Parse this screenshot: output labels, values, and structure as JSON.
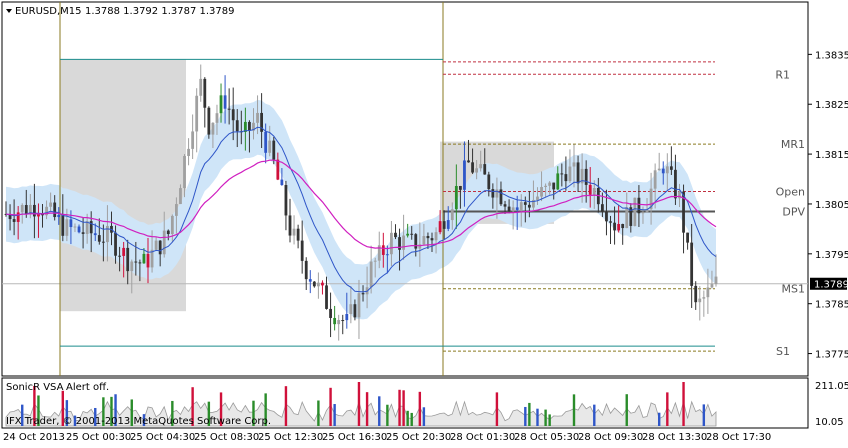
{
  "header": {
    "symbol_label": "EURUSD,M15",
    "ohlc_label": "1.3788 1.3792 1.3787 1.3789"
  },
  "price_axis": {
    "ticks": [
      "1.3835",
      "1.3825",
      "1.3815",
      "1.3805",
      "1.3795",
      "1.3785",
      "1.3775"
    ],
    "tick_values": [
      1.3835,
      1.3825,
      1.3815,
      1.3805,
      1.3795,
      1.3785,
      1.3775
    ],
    "current_price": "1.3789",
    "current_value": 1.3789
  },
  "level_labels": [
    {
      "label": "R1",
      "value": 1.3831
    },
    {
      "label": "MR1",
      "value": 1.3817
    },
    {
      "label": "Open",
      "value": 1.38075
    },
    {
      "label": "DPV",
      "value": 1.38035
    },
    {
      "label": "MS1",
      "value": 1.3788
    },
    {
      "label": "S1",
      "value": 1.37755
    }
  ],
  "indicator": {
    "title": "SonicR VSA",
    "alert": "Alert off.",
    "scale_top": "211.05",
    "scale_bottom": "10.05",
    "watermark": "IFX Trader, © 2001-2013 MetaQuotes Software Corp."
  },
  "time_axis": [
    "24 Oct 2013",
    "25 Oct 00:30",
    "25 Oct 04:30",
    "25 Oct 08:30",
    "25 Oct 12:30",
    "25 Oct 16:30",
    "25 Oct 20:30",
    "28 Oct 01:30",
    "28 Oct 05:30",
    "28 Oct 09:30",
    "28 Oct 13:30",
    "28 Oct 17:30"
  ],
  "colors": {
    "bull": "#2a8c2a",
    "bear": "#333333",
    "climax": "#d0103a",
    "vsa_blue": "#2f56c8",
    "band": "#cfe5f8",
    "ma_magenta": "#d020c0",
    "ma_blue": "#2f56c8",
    "session_line": "#8a7a20",
    "range_box": "#d9d9d9"
  },
  "chart_data": {
    "type": "candlestick",
    "symbol": "EURUSD",
    "timeframe": "M15",
    "ylim": [
      1.37705,
      1.38455
    ],
    "sessions": [
      "25 Oct",
      "28 Oct"
    ],
    "indicator_ylim": [
      10.05,
      211.05
    ]
  }
}
